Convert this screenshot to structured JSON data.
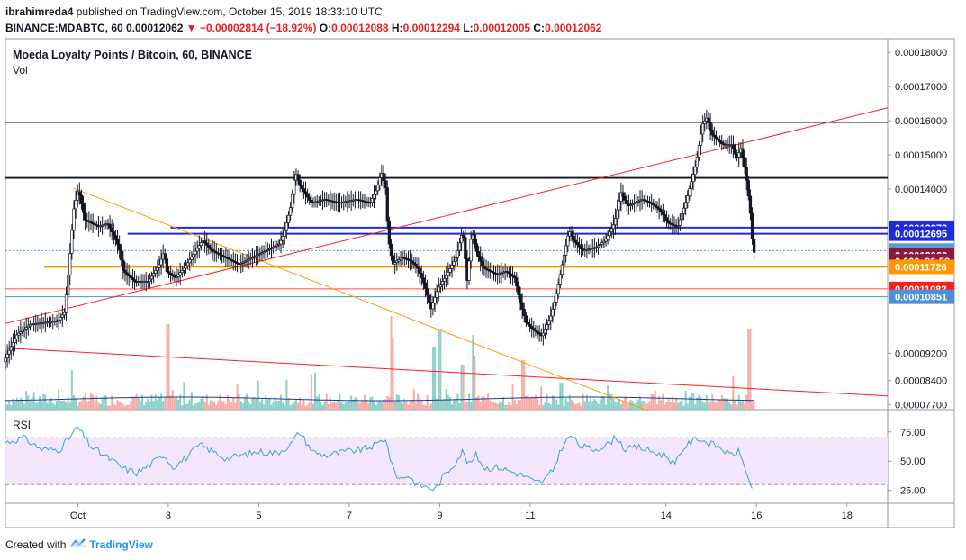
{
  "header": {
    "publisher": "ibrahimreda4",
    "published_text": "published on TradingView.com, October 15, 2019 18:33:10 UTC",
    "symbol": "BINANCE:MDABTC, 60",
    "last": "0.00012062",
    "change": "−0.00002814 (−18.92%)",
    "o_label": "O:",
    "o": "0.00012088",
    "h_label": "H:",
    "h": "0.00012294",
    "l_label": "L:",
    "l": "0.00012005",
    "c_label": "C:",
    "c": "0.00012062"
  },
  "legend": {
    "title": "Moeda Loyalty Points / Bitcoin, 60, BINANCE",
    "vol": "Vol",
    "rsi": "RSI"
  },
  "price_axis": {
    "ticks": [
      {
        "label": "0.00018000",
        "value": 0.00018
      },
      {
        "label": "0.00017000",
        "value": 0.00017
      },
      {
        "label": "0.00016000",
        "value": 0.00016
      },
      {
        "label": "0.00015000",
        "value": 0.00015
      },
      {
        "label": "0.00014000",
        "value": 0.00014
      },
      {
        "label": "0.00009200",
        "value": 9.2e-05
      },
      {
        "label": "0.00008400",
        "value": 8.4e-05
      },
      {
        "label": "0.00007700",
        "value": 7.7e-05
      }
    ],
    "badges": [
      {
        "label": "0.00012872",
        "value": 0.00012872,
        "color": "#1e2bd6"
      },
      {
        "label": "0.00012695",
        "value": 0.00012695,
        "color": "#1e2bd6"
      },
      {
        "label": "0.00012203",
        "value": 0.00012203,
        "color": "#5b9bd5"
      },
      {
        "label": "0.00012062",
        "value": 0.00012062,
        "color": "#8b1a3a"
      },
      {
        "label": "0.000",
        "value": 0.0001189,
        "color": "#8b1a3a",
        "countdown": "26:58"
      },
      {
        "label": "0.00011726",
        "value": 0.00011726,
        "color": "#ff9800"
      },
      {
        "label": "0.00011082",
        "value": 0.00011082,
        "color": "#ff1e1e"
      },
      {
        "label": "0.00010851",
        "value": 0.00010851,
        "color": "#4f8fd6"
      }
    ]
  },
  "rsi_axis": {
    "ticks": [
      {
        "label": "75.00",
        "value": 75
      },
      {
        "label": "50.00",
        "value": 50
      },
      {
        "label": "25.00",
        "value": 25
      }
    ]
  },
  "time_axis": {
    "labels": [
      {
        "label": "Oct",
        "t": 0
      },
      {
        "label": "3",
        "t": 2
      },
      {
        "label": "5",
        "t": 4
      },
      {
        "label": "7",
        "t": 6
      },
      {
        "label": "9",
        "t": 8
      },
      {
        "label": "11",
        "t": 10
      },
      {
        "label": "14",
        "t": 13
      },
      {
        "label": "16",
        "t": 15
      },
      {
        "label": "18",
        "t": 17
      }
    ]
  },
  "chart_data": {
    "type": "candlestick",
    "title": "Moeda Loyalty Points / Bitcoin, 60, BINANCE",
    "ylim": [
      7.55e-05,
      0.000184
    ],
    "xlim": [
      -1.6,
      17.9
    ],
    "price_path": [
      [
        -1.6,
        8.95e-05
      ],
      [
        -1.3,
        9.75e-05
      ],
      [
        -1.0,
        0.0001005
      ],
      [
        -0.7,
        0.000101
      ],
      [
        -0.4,
        0.0001015
      ],
      [
        -0.25,
        0.000104
      ],
      [
        -0.15,
        0.000118
      ],
      [
        -0.05,
        0.000134
      ],
      [
        0.05,
        0.00014
      ],
      [
        0.2,
        0.000131
      ],
      [
        0.5,
        0.000129
      ],
      [
        0.7,
        0.00013
      ],
      [
        0.85,
        0.000126
      ],
      [
        0.95,
        0.000123
      ],
      [
        1.05,
        0.000116
      ],
      [
        1.3,
        0.000113
      ],
      [
        1.6,
        0.000113
      ],
      [
        1.75,
        0.000116
      ],
      [
        1.85,
        0.000118
      ],
      [
        1.95,
        0.000122
      ],
      [
        2.0,
        0.000116
      ],
      [
        2.2,
        0.000114
      ],
      [
        2.4,
        0.000117
      ],
      [
        2.6,
        0.000121
      ],
      [
        2.8,
        0.000125
      ],
      [
        3.0,
        0.000122
      ],
      [
        3.3,
        0.00012
      ],
      [
        3.6,
        0.000118
      ],
      [
        3.9,
        0.00012
      ],
      [
        4.2,
        0.000122
      ],
      [
        4.5,
        0.000124
      ],
      [
        4.6,
        0.000127
      ],
      [
        4.75,
        0.000135
      ],
      [
        4.85,
        0.000145
      ],
      [
        4.95,
        0.000141
      ],
      [
        5.2,
        0.000136
      ],
      [
        5.5,
        0.000137
      ],
      [
        5.8,
        0.000136
      ],
      [
        6.2,
        0.000137
      ],
      [
        6.5,
        0.000136
      ],
      [
        6.65,
        0.00014
      ],
      [
        6.75,
        0.000145
      ],
      [
        6.85,
        0.00014
      ],
      [
        6.9,
        0.000126
      ],
      [
        7.0,
        0.000118
      ],
      [
        7.2,
        0.00012
      ],
      [
        7.4,
        0.000119
      ],
      [
        7.55,
        0.000117
      ],
      [
        7.7,
        0.000112
      ],
      [
        7.85,
        0.000105
      ],
      [
        8.0,
        0.000111
      ],
      [
        8.2,
        0.000115
      ],
      [
        8.4,
        0.00012
      ],
      [
        8.55,
        0.000128
      ],
      [
        8.65,
        0.000113
      ],
      [
        8.75,
        0.000128
      ],
      [
        8.85,
        0.000122
      ],
      [
        9.0,
        0.000117
      ],
      [
        9.3,
        0.000115
      ],
      [
        9.5,
        0.000116
      ],
      [
        9.7,
        0.000114
      ],
      [
        9.8,
        0.000108
      ],
      [
        9.95,
        0.000101
      ],
      [
        10.1,
        9.9e-05
      ],
      [
        10.3,
        9.7e-05
      ],
      [
        10.5,
        0.000103
      ],
      [
        10.6,
        0.000108
      ],
      [
        10.75,
        0.000118
      ],
      [
        10.9,
        0.000128
      ],
      [
        11.0,
        0.000125
      ],
      [
        11.2,
        0.000122
      ],
      [
        11.5,
        0.000123
      ],
      [
        11.7,
        0.000125
      ],
      [
        11.9,
        0.00013
      ],
      [
        12.05,
        0.000139
      ],
      [
        12.2,
        0.000135
      ],
      [
        12.5,
        0.000137
      ],
      [
        12.7,
        0.000136
      ],
      [
        12.9,
        0.000134
      ],
      [
        13.1,
        0.00013
      ],
      [
        13.3,
        0.000129
      ],
      [
        13.5,
        0.000137
      ],
      [
        13.7,
        0.000147
      ],
      [
        13.85,
        0.000159
      ],
      [
        13.95,
        0.000161
      ],
      [
        14.05,
        0.000156
      ],
      [
        14.3,
        0.000153
      ],
      [
        14.5,
        0.000153
      ],
      [
        14.6,
        0.000149
      ],
      [
        14.7,
        0.000152
      ],
      [
        14.8,
        0.000145
      ],
      [
        14.9,
        0.000134
      ],
      [
        14.97,
        0.0001215
      ]
    ],
    "volume_scale_max": 1.0,
    "rsi_ylim": [
      14,
      91
    ],
    "rsi_path": [
      [
        -1.6,
        66
      ],
      [
        -1.2,
        70
      ],
      [
        -0.8,
        60
      ],
      [
        -0.4,
        60
      ],
      [
        0.0,
        79
      ],
      [
        0.3,
        62
      ],
      [
        0.7,
        52
      ],
      [
        1.0,
        44
      ],
      [
        1.3,
        40
      ],
      [
        1.6,
        47
      ],
      [
        1.9,
        56
      ],
      [
        2.1,
        45
      ],
      [
        2.4,
        53
      ],
      [
        2.7,
        64
      ],
      [
        3.0,
        58
      ],
      [
        3.3,
        52
      ],
      [
        3.6,
        55
      ],
      [
        4.0,
        58
      ],
      [
        4.4,
        57
      ],
      [
        4.7,
        64
      ],
      [
        4.9,
        75
      ],
      [
        5.2,
        58
      ],
      [
        5.5,
        55
      ],
      [
        5.9,
        58
      ],
      [
        6.3,
        60
      ],
      [
        6.6,
        64
      ],
      [
        6.8,
        70
      ],
      [
        6.95,
        45
      ],
      [
        7.1,
        35
      ],
      [
        7.3,
        38
      ],
      [
        7.5,
        30
      ],
      [
        7.7,
        28
      ],
      [
        7.9,
        26
      ],
      [
        8.1,
        38
      ],
      [
        8.3,
        47
      ],
      [
        8.5,
        58
      ],
      [
        8.65,
        47
      ],
      [
        8.8,
        55
      ],
      [
        9.0,
        44
      ],
      [
        9.3,
        45
      ],
      [
        9.6,
        41
      ],
      [
        9.9,
        37
      ],
      [
        10.1,
        32
      ],
      [
        10.3,
        33
      ],
      [
        10.5,
        42
      ],
      [
        10.7,
        62
      ],
      [
        10.9,
        72
      ],
      [
        11.1,
        63
      ],
      [
        11.4,
        60
      ],
      [
        11.7,
        64
      ],
      [
        11.9,
        71
      ],
      [
        12.1,
        60
      ],
      [
        12.4,
        62
      ],
      [
        12.7,
        58
      ],
      [
        13.0,
        55
      ],
      [
        13.2,
        47
      ],
      [
        13.4,
        62
      ],
      [
        13.7,
        70
      ],
      [
        13.9,
        66
      ],
      [
        14.2,
        62
      ],
      [
        14.4,
        55
      ],
      [
        14.6,
        58
      ],
      [
        14.75,
        45
      ],
      [
        14.9,
        25
      ],
      [
        14.95,
        24
      ]
    ],
    "rsi_levels": [
      70,
      30
    ],
    "horizontal_levels": [
      {
        "value": 0.0001595,
        "color": "#131722",
        "width": 1,
        "from": -1.6
      },
      {
        "value": 0.0001433,
        "color": "#131722",
        "width": 1.8,
        "from": -1.6
      },
      {
        "value": 0.00012872,
        "color": "#1e2bd6",
        "width": 2,
        "from": 2.05
      },
      {
        "value": 0.00012695,
        "color": "#1e2bd6",
        "width": 2,
        "from": 1.1
      },
      {
        "value": 0.00012203,
        "color": "#5b9bd5",
        "width": 1,
        "from": -1.6,
        "dotted": true
      },
      {
        "value": 0.00011726,
        "color": "#ff9800",
        "width": 2,
        "from": -0.75
      },
      {
        "value": 0.00011082,
        "color": "#ff4d4d",
        "width": 1,
        "from": -1.6
      },
      {
        "value": 0.00010851,
        "color": "#4f8fd6",
        "width": 1,
        "from": -1.6
      }
    ],
    "trend_lines": [
      {
        "color": "#ff1e1e",
        "points": [
          [
            -1.6,
            0.0001007
          ],
          [
            17.9,
            0.0001638
          ]
        ]
      },
      {
        "color": "#ff1e1e",
        "points": [
          [
            -1.6,
            9.35e-05
          ],
          [
            17.9,
            7.95e-05
          ]
        ]
      },
      {
        "color": "#ff9800",
        "points": [
          [
            -0.1,
            0.0001403
          ],
          [
            12.6,
            7.52e-05
          ]
        ]
      }
    ]
  },
  "footer": {
    "created_with": "Created with",
    "brand": "TradingView",
    "logo_icon": "tradingview-cloud-icon"
  }
}
